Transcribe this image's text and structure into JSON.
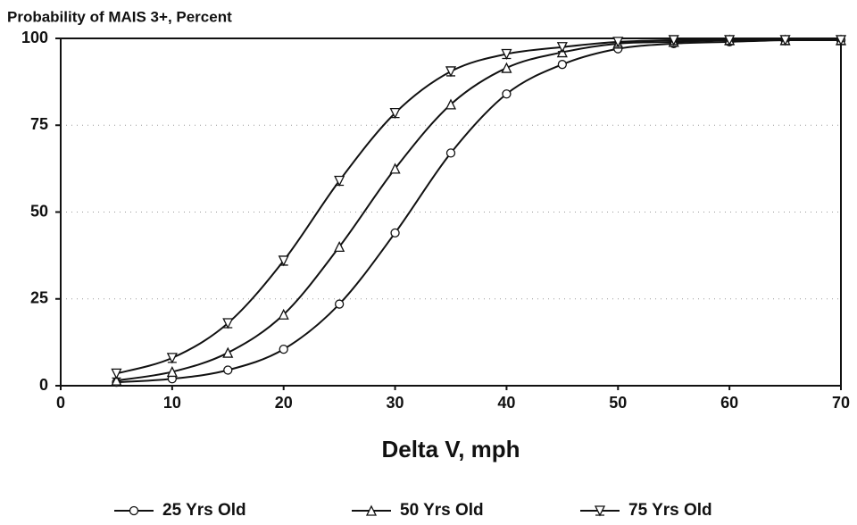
{
  "chart_data": {
    "type": "line",
    "title": "Probability of MAIS 3+, Percent",
    "x_label": "Delta V, mph",
    "x": [
      5,
      10,
      15,
      20,
      25,
      30,
      35,
      40,
      45,
      50,
      55,
      60,
      65,
      70
    ],
    "series": [
      {
        "name": "25 Yrs Old",
        "color": "#111111",
        "marker": "circle",
        "values": [
          1,
          2,
          4.5,
          10.5,
          23.5,
          44,
          67,
          84,
          92.5,
          97,
          98.5,
          99,
          99.5,
          99.5
        ]
      },
      {
        "name": "50 Yrs Old",
        "color": "#111111",
        "marker": "triangle-up",
        "values": [
          1.5,
          4,
          9.5,
          20.5,
          40,
          62.5,
          81,
          91.5,
          96,
          98.5,
          99,
          99.5,
          99.5,
          99.5
        ]
      },
      {
        "name": "75 Yrs Old",
        "color": "#111111",
        "marker": "triangle-down",
        "values": [
          3.5,
          8,
          18,
          36,
          59,
          78.5,
          90.5,
          95.5,
          97.5,
          99,
          99.5,
          99.5,
          99.5,
          99.5
        ]
      }
    ],
    "xlim": [
      0,
      70
    ],
    "xticks": [
      0,
      10,
      20,
      30,
      40,
      50,
      60,
      70
    ],
    "ylim": [
      0,
      100
    ],
    "yticks": [
      0,
      25,
      50,
      75,
      100
    ],
    "grid": true,
    "legend": "bottom"
  }
}
